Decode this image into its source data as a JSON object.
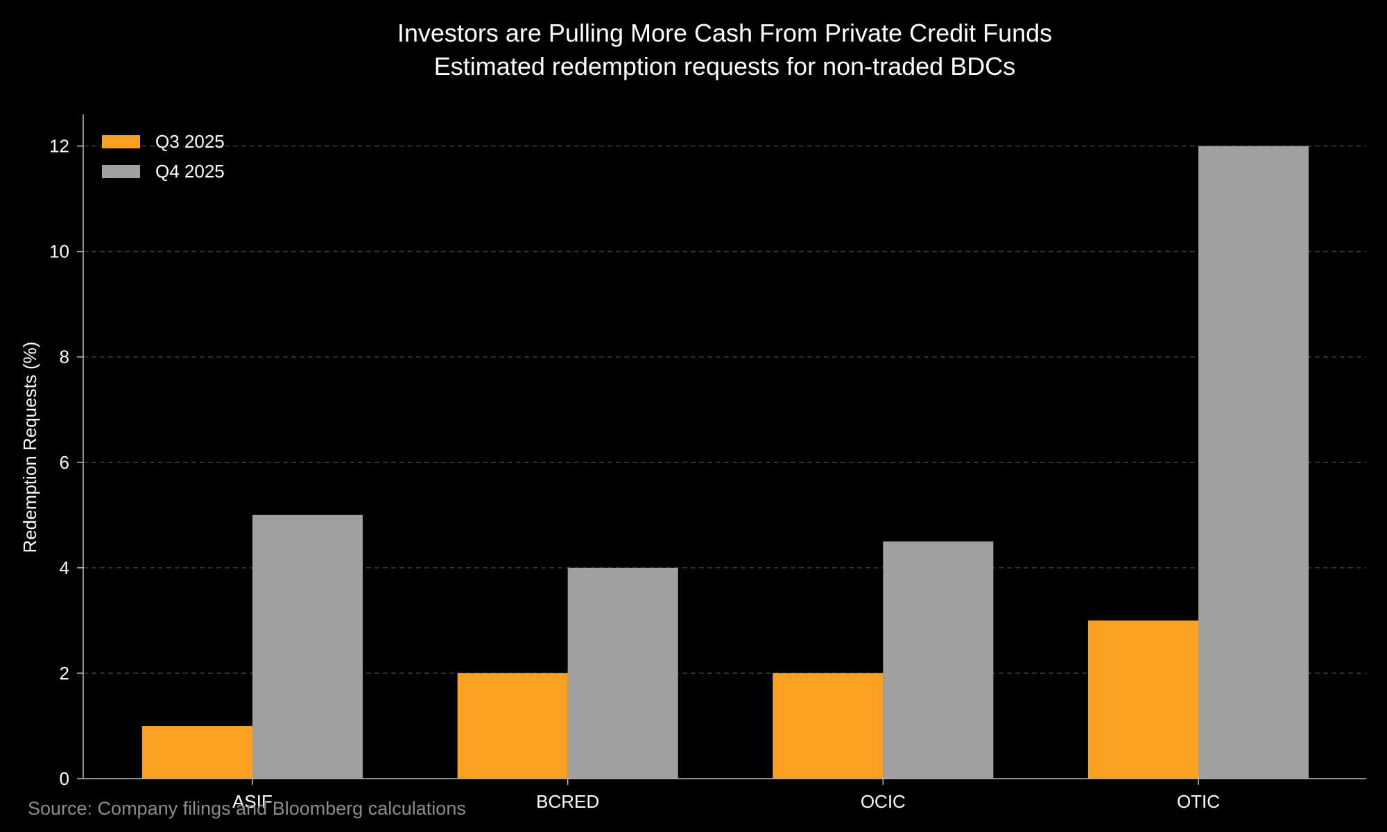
{
  "chart_data": {
    "type": "bar",
    "title": "Investors are Pulling More Cash From Private Credit Funds",
    "subtitle": "Estimated redemption requests for non-traded BDCs",
    "xlabel": "",
    "ylabel": "Redemption Requests (%)",
    "categories": [
      "ASIF",
      "BCRED",
      "OCIC",
      "OTIC"
    ],
    "series": [
      {
        "name": "Q3 2025",
        "values": [
          1,
          2,
          2,
          3
        ],
        "color": "#fca022"
      },
      {
        "name": "Q4 2025",
        "values": [
          5,
          4,
          4.5,
          12
        ],
        "color": "#a0a0a0"
      }
    ],
    "ylim": [
      0,
      12.6
    ],
    "yticks": [
      "0",
      "2",
      "4",
      "6",
      "8",
      "10",
      "12"
    ],
    "grid": true,
    "legend": "top-left",
    "source": "Source: Company filings and Bloomberg calculations"
  }
}
